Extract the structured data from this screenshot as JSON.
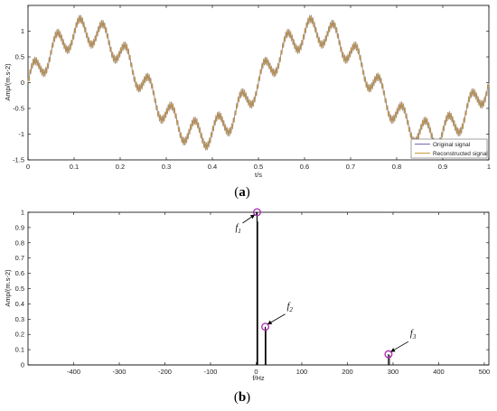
{
  "chart_data": [
    {
      "type": "line",
      "caption": "(a)",
      "xlabel": "t/s",
      "ylabel": "Amp/(m.s-2)",
      "xlim": [
        0,
        1
      ],
      "ylim": [
        -1.5,
        1.5
      ],
      "xticks": [
        "0",
        "0.1",
        "0.2",
        "0.3",
        "0.4",
        "0.5",
        "0.6",
        "0.7",
        "0.8",
        "0.9",
        "1"
      ],
      "yticks": [
        "-1.5",
        "-1",
        "-0.5",
        "0",
        "0.5",
        "1"
      ],
      "series": [
        {
          "name": "Original signal",
          "color": "#6e6eb4"
        },
        {
          "name": "Reconstructed signal",
          "color": "#c89a3c"
        }
      ],
      "signal_components": [
        {
          "frequency_hz": 2,
          "amplitude": 1.0
        },
        {
          "frequency_hz": 20,
          "amplitude": 0.25
        },
        {
          "frequency_hz": 290,
          "amplitude": 0.07
        }
      ],
      "legend_position": "bottom-right",
      "grid": false
    },
    {
      "type": "line",
      "caption": "(b)",
      "xlabel": "f/Hz",
      "ylabel": "Amp/(m.s-2)",
      "xlim": [
        -500,
        510
      ],
      "ylim": [
        0,
        1
      ],
      "xticks": [
        "-400",
        "-300",
        "-200",
        "-100",
        "0",
        "100",
        "200",
        "300",
        "400",
        "500"
      ],
      "yticks": [
        "0",
        "0.1",
        "0.2",
        "0.3",
        "0.4",
        "0.5",
        "0.6",
        "0.7",
        "0.8",
        "0.9",
        "1"
      ],
      "color": "#000000",
      "peaks": [
        {
          "label": "f",
          "subscript": "1",
          "x": 2,
          "y": 1.0
        },
        {
          "label": "f",
          "subscript": "2",
          "x": 20,
          "y": 0.25
        },
        {
          "label": "f",
          "subscript": "3",
          "x": 290,
          "y": 0.07
        }
      ],
      "marker_color": "#b030b0",
      "grid": false
    }
  ]
}
